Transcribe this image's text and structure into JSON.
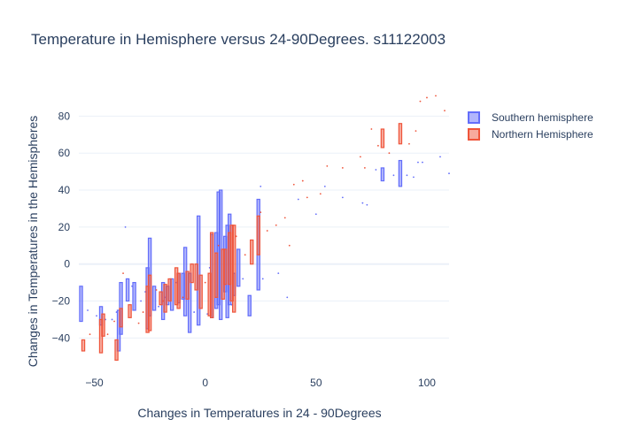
{
  "chart_data": {
    "type": "box",
    "title": "Temperature in Hemisphere versus 24-90Degrees. s11122003",
    "xlabel": "Changes in Temperatures in 24 - 90Degrees",
    "ylabel": "Changes in Temperatures in the Hemispheres",
    "xlim": [
      -57,
      110
    ],
    "ylim": [
      -58,
      95
    ],
    "xticks": [
      -50,
      0,
      50,
      100
    ],
    "yticks": [
      -40,
      -20,
      0,
      20,
      40,
      60,
      80
    ],
    "grid": true,
    "legend_position": "top-right",
    "series": [
      {
        "name": "Southern hemisphere",
        "color": "#636efa",
        "fill": "rgba(99,110,250,0.5)",
        "boxes": [
          [
            -56,
            -31,
            -12
          ],
          [
            -47,
            -33,
            -23
          ],
          [
            -39,
            -47,
            -25
          ],
          [
            -38,
            -38,
            -10
          ],
          [
            -35,
            -20,
            -8
          ],
          [
            -32,
            -25,
            -10
          ],
          [
            -26,
            -35,
            -2
          ],
          [
            -25,
            -28,
            14
          ],
          [
            -23,
            -25,
            -12
          ],
          [
            -19,
            -30,
            -10
          ],
          [
            -17,
            -22,
            -12
          ],
          [
            -15,
            -25,
            -8
          ],
          [
            -12,
            -21,
            -5
          ],
          [
            -10,
            -19,
            -5
          ],
          [
            -9,
            -28,
            9
          ],
          [
            -7,
            -37,
            -5
          ],
          [
            -3,
            -33,
            26
          ],
          [
            3,
            -29,
            16
          ],
          [
            5,
            -24,
            17
          ],
          [
            6,
            -22,
            39
          ],
          [
            7,
            -30,
            40
          ],
          [
            9,
            -15,
            15
          ],
          [
            10,
            -29,
            21
          ],
          [
            11,
            -22,
            27
          ],
          [
            13,
            -17,
            -5
          ],
          [
            15,
            -12,
            8
          ],
          [
            20,
            -28,
            -17
          ],
          [
            24,
            -14,
            35
          ],
          [
            80,
            45,
            52
          ],
          [
            88,
            42,
            56
          ]
        ],
        "points": [
          [
            -53,
            -25
          ],
          [
            -49,
            -28
          ],
          [
            -45,
            -30
          ],
          [
            -42,
            -30
          ],
          [
            -40,
            -26
          ],
          [
            -36,
            20
          ],
          [
            -33,
            -12
          ],
          [
            -29,
            -20
          ],
          [
            -27,
            -15
          ],
          [
            -21,
            -23
          ],
          [
            -18,
            -18
          ],
          [
            -13,
            -10
          ],
          [
            -5,
            -26
          ],
          [
            1,
            -27
          ],
          [
            2,
            -2
          ],
          [
            12,
            -22
          ],
          [
            17,
            -8
          ],
          [
            25,
            42
          ],
          [
            26,
            -8
          ],
          [
            33,
            -5
          ],
          [
            37,
            -18
          ],
          [
            42,
            35
          ],
          [
            50,
            27
          ],
          [
            54,
            42
          ],
          [
            62,
            36
          ],
          [
            71,
            33
          ],
          [
            73,
            32
          ],
          [
            77,
            51
          ],
          [
            85,
            48
          ],
          [
            91,
            48
          ],
          [
            94,
            47
          ],
          [
            96,
            55
          ],
          [
            98,
            55
          ],
          [
            106,
            58
          ],
          [
            110,
            49
          ]
        ]
      },
      {
        "name": "Northern Hemisphere",
        "color": "#ef553b",
        "fill": "rgba(239,85,59,0.5)",
        "boxes": [
          [
            -55,
            -47,
            -41
          ],
          [
            -47,
            -48,
            -30
          ],
          [
            -46,
            -39,
            -27
          ],
          [
            -40,
            -52,
            -41
          ],
          [
            -38,
            -34,
            -24
          ],
          [
            -34,
            -29,
            -22
          ],
          [
            -26,
            -37,
            -12
          ],
          [
            -25,
            -36,
            -6
          ],
          [
            -20,
            -22,
            -15
          ],
          [
            -18,
            -26,
            -11
          ],
          [
            -16,
            -20,
            -8
          ],
          [
            -13,
            -22,
            -2
          ],
          [
            -12,
            -24,
            -5
          ],
          [
            -8,
            -19,
            -4
          ],
          [
            -6,
            -10,
            0
          ],
          [
            -4,
            -14,
            0
          ],
          [
            -2,
            -24,
            -6
          ],
          [
            2,
            -28,
            -5
          ],
          [
            3,
            -29,
            17
          ],
          [
            5,
            -18,
            6
          ],
          [
            8,
            -19,
            8
          ],
          [
            9,
            -11,
            8
          ],
          [
            11,
            -11,
            17
          ],
          [
            12,
            -20,
            21
          ],
          [
            13,
            -26,
            21
          ],
          [
            21,
            0,
            13
          ],
          [
            24,
            5,
            26
          ],
          [
            80,
            63,
            73
          ],
          [
            88,
            65,
            76
          ]
        ],
        "points": [
          [
            -52,
            -38
          ],
          [
            -44,
            -38
          ],
          [
            -41,
            -31
          ],
          [
            -37,
            -5
          ],
          [
            -30,
            -32
          ],
          [
            -28,
            -26
          ],
          [
            -22,
            -14
          ],
          [
            -19,
            -20
          ],
          [
            -10,
            -18
          ],
          [
            0,
            -10
          ],
          [
            6,
            10
          ],
          [
            14,
            15
          ],
          [
            18,
            5
          ],
          [
            25,
            28
          ],
          [
            28,
            18
          ],
          [
            32,
            21
          ],
          [
            36,
            25
          ],
          [
            38,
            10
          ],
          [
            40,
            43
          ],
          [
            44,
            45
          ],
          [
            46,
            36
          ],
          [
            52,
            38
          ],
          [
            55,
            53
          ],
          [
            62,
            52
          ],
          [
            70,
            58
          ],
          [
            72,
            52
          ],
          [
            75,
            73
          ],
          [
            78,
            64
          ],
          [
            83,
            60
          ],
          [
            92,
            65
          ],
          [
            95,
            72
          ],
          [
            97,
            88
          ],
          [
            100,
            90
          ],
          [
            104,
            91
          ],
          [
            108,
            83
          ]
        ]
      }
    ]
  }
}
